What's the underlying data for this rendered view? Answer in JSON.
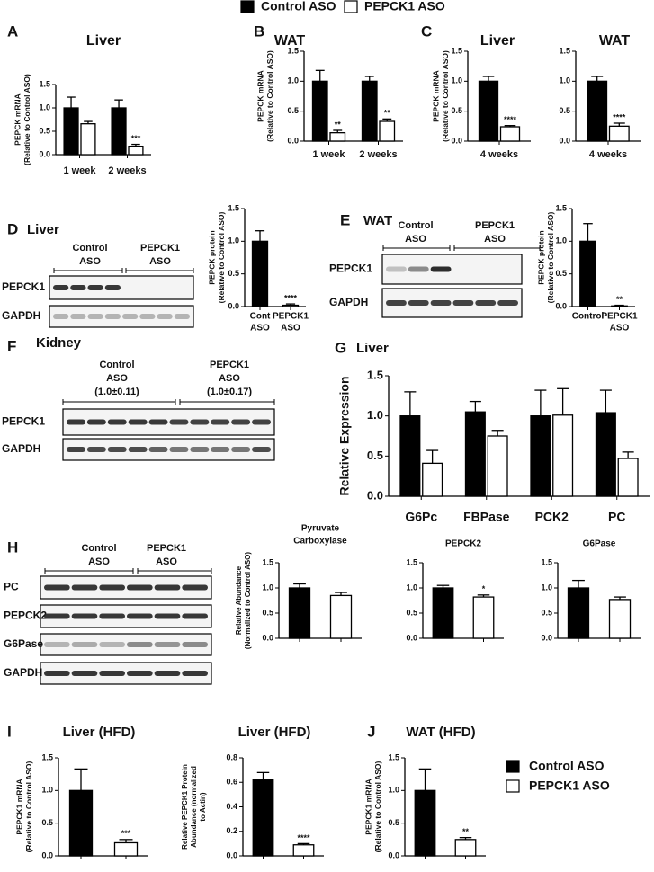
{
  "panel_labels": [
    "A",
    "B",
    "C",
    "D",
    "E",
    "F",
    "G",
    "H",
    "I",
    "J"
  ],
  "legend": [
    {
      "name": "Control ASO",
      "color": "#000000"
    },
    {
      "name": "PEPCK1 ASO",
      "color": "#ffffff"
    }
  ],
  "blots": [
    {
      "title": "Liver",
      "groups": [
        [
          "Control",
          "ASO"
        ],
        [
          "PEPCK1",
          "ASO"
        ]
      ],
      "rows": [
        "PEPCK1",
        "GAPDH"
      ]
    },
    {
      "title": "WAT",
      "groups": [
        [
          "Control",
          "ASO"
        ],
        [
          "PEPCK1",
          "ASO"
        ]
      ],
      "rows": [
        "PEPCK1",
        "GAPDH"
      ]
    },
    {
      "title": "Kidney",
      "groups": [
        [
          "Control",
          "ASO",
          "(1.0±0.11)"
        ],
        [
          "PEPCK1",
          "ASO",
          "(1.0±0.17)"
        ]
      ],
      "rows": [
        "PEPCK1",
        "GAPDH"
      ]
    },
    {
      "groups": [
        [
          "Control",
          "ASO"
        ],
        [
          "PEPCK1",
          "ASO"
        ]
      ],
      "rows": [
        "PC",
        "PEPCK2",
        "G6Pase",
        "GAPDH"
      ]
    }
  ],
  "chart_data": [
    {
      "type": "bar",
      "title": [
        "Liver"
      ],
      "ylabel": [
        "PEPCK mRNA",
        "(Relative to Control ASO)"
      ],
      "categories": [
        [
          "1 week"
        ],
        [
          "2 weeks"
        ]
      ],
      "series": [
        {
          "color": "#000000",
          "values": [
            1.0,
            1.0
          ],
          "errors": [
            0.23,
            0.17
          ],
          "annotations": [
            null,
            null
          ]
        },
        {
          "color": "#ffffff",
          "values": [
            0.66,
            0.18
          ],
          "errors": [
            0.05,
            0.04
          ],
          "annotations": [
            null,
            "***"
          ]
        }
      ],
      "ylim": [
        0,
        1.5
      ],
      "yticks": [
        {
          "value": 0,
          "label": "0.0"
        },
        0.5,
        {
          "value": 1,
          "label": "1.0"
        },
        1.5
      ]
    },
    {
      "type": "bar",
      "title": [
        "WAT"
      ],
      "ylabel": [
        "PEPCK mRNA",
        "(Relative to Control ASO)"
      ],
      "categories": [
        [
          "1 week"
        ],
        [
          "2 weeks"
        ]
      ],
      "series": [
        {
          "color": "#000000",
          "values": [
            1.0,
            1.0
          ],
          "errors": [
            0.18,
            0.08
          ],
          "annotations": [
            null,
            null
          ]
        },
        {
          "color": "#ffffff",
          "values": [
            0.14,
            0.33
          ],
          "errors": [
            0.04,
            0.04
          ],
          "annotations": [
            "**",
            "**"
          ]
        }
      ],
      "ylim": [
        0,
        1.5
      ],
      "yticks": [
        {
          "value": 0,
          "label": "0.0"
        },
        0.5,
        {
          "value": 1,
          "label": "1.0"
        },
        1.5
      ]
    },
    {
      "type": "bar",
      "title": [
        "Liver"
      ],
      "ylabel": [
        "PEPCK mRNA",
        "(Relative to Control ASO)"
      ],
      "categories": [
        [
          "4 weeks"
        ]
      ],
      "series": [
        {
          "color": "#000000",
          "values": [
            1.0
          ],
          "errors": [
            0.08
          ],
          "annotations": [
            null
          ]
        },
        {
          "color": "#ffffff",
          "values": [
            0.24
          ],
          "errors": [
            0.02
          ],
          "annotations": [
            "****"
          ]
        }
      ],
      "ylim": [
        0,
        1.5
      ],
      "yticks": [
        {
          "value": 0,
          "label": "0.0"
        },
        0.5,
        {
          "value": 1,
          "label": "1.0"
        },
        1.5
      ]
    },
    {
      "type": "bar",
      "title": [
        "WAT"
      ],
      "categories": [
        [
          "4 weeks"
        ]
      ],
      "series": [
        {
          "color": "#000000",
          "values": [
            1.0
          ],
          "errors": [
            0.08
          ],
          "annotations": [
            null
          ]
        },
        {
          "color": "#ffffff",
          "values": [
            0.25
          ],
          "errors": [
            0.05
          ],
          "annotations": [
            "****"
          ]
        }
      ],
      "ylim": [
        0,
        1.5
      ],
      "yticks": [
        {
          "value": 0,
          "label": "0.0"
        },
        0.5,
        {
          "value": 1,
          "label": "1.0"
        },
        1.5
      ]
    },
    {
      "type": "bar",
      "ylabel": [
        "PEPCK protein",
        "(Relative to Control ASO)"
      ],
      "categories": [
        [
          "Cont",
          "ASO"
        ],
        [
          "PEPCK1",
          "ASO"
        ]
      ],
      "values": [
        1.0,
        0.02
      ],
      "errors": [
        0.16,
        0.02
      ],
      "colors": [
        "#000000",
        "#ffffff"
      ],
      "annotations": [
        null,
        "****"
      ],
      "ylim": [
        0,
        1.5
      ],
      "yticks": [
        {
          "value": 0,
          "label": "0.0"
        },
        0.5,
        {
          "value": 1,
          "label": "1.0"
        },
        1.5
      ]
    },
    {
      "type": "bar",
      "ylabel": [
        "PEPCK protein",
        "(Relative to Control ASO)"
      ],
      "categories": [
        [
          "Control"
        ],
        [
          "PEPCK1",
          "ASO"
        ]
      ],
      "values": [
        1.0,
        0.01
      ],
      "errors": [
        0.27,
        0.01
      ],
      "colors": [
        "#000000",
        "#ffffff"
      ],
      "annotations": [
        null,
        "**"
      ],
      "ylim": [
        0,
        1.5
      ],
      "yticks": [
        {
          "value": 0,
          "label": "0.0"
        },
        0.5,
        {
          "value": 1,
          "label": "1.0"
        },
        1.5
      ]
    },
    {
      "type": "bar",
      "title": [
        "Liver"
      ],
      "ylabel": [
        "Relative Expression"
      ],
      "categories": [
        [
          "G6Pc"
        ],
        [
          "FBPase"
        ],
        [
          "PCK2"
        ],
        [
          "PC"
        ]
      ],
      "series": [
        {
          "color": "#000000",
          "values": [
            1.0,
            1.05,
            1.0,
            1.04
          ],
          "errors": [
            0.3,
            0.13,
            0.32,
            0.28
          ],
          "annotations": [
            null,
            null,
            null,
            null
          ]
        },
        {
          "color": "#ffffff",
          "values": [
            0.41,
            0.75,
            1.01,
            0.47
          ],
          "errors": [
            0.16,
            0.07,
            0.33,
            0.08
          ],
          "annotations": [
            null,
            null,
            null,
            null
          ]
        }
      ],
      "ylim": [
        0,
        1.5
      ],
      "yticks": [
        {
          "value": 0,
          "label": "0.0"
        },
        0.5,
        {
          "value": 1,
          "label": "1.0"
        },
        1.5
      ]
    },
    {
      "type": "bar",
      "title": [
        "Pyruvate",
        "Carboxylase"
      ],
      "ylabel": [
        "Relative Abundance",
        "(Normalized to Control ASO)"
      ],
      "categories": [
        null,
        null
      ],
      "values": [
        1.0,
        0.85
      ],
      "errors": [
        0.08,
        0.06
      ],
      "colors": [
        "#000000",
        "#ffffff"
      ],
      "annotations": [
        null,
        null
      ],
      "ylim": [
        0,
        1.5
      ],
      "yticks": [
        {
          "value": 0,
          "label": "0.0"
        },
        0.5,
        {
          "value": 1,
          "label": "1.0"
        },
        1.5
      ]
    },
    {
      "type": "bar",
      "title": [
        "PEPCK2"
      ],
      "categories": [
        null,
        null
      ],
      "values": [
        1.0,
        0.82
      ],
      "errors": [
        0.05,
        0.04
      ],
      "colors": [
        "#000000",
        "#ffffff"
      ],
      "annotations": [
        null,
        "*"
      ],
      "ylim": [
        0,
        1.5
      ],
      "yticks": [
        {
          "value": 0,
          "label": "0.0"
        },
        0.5,
        {
          "value": 1,
          "label": "1.0"
        },
        1.5
      ]
    },
    {
      "type": "bar",
      "title": [
        "G6Pase"
      ],
      "categories": [
        null,
        null
      ],
      "values": [
        1.0,
        0.77
      ],
      "errors": [
        0.15,
        0.05
      ],
      "colors": [
        "#000000",
        "#ffffff"
      ],
      "annotations": [
        null,
        null
      ],
      "ylim": [
        0,
        1.5
      ],
      "yticks": [
        {
          "value": 0,
          "label": "0.0"
        },
        0.5,
        {
          "value": 1,
          "label": "1.0"
        },
        1.5
      ]
    },
    {
      "type": "bar",
      "title": [
        "Liver (HFD)"
      ],
      "ylabel": [
        "PEPCK1 mRNA",
        "(Relative to Control ASO)"
      ],
      "categories": [
        null,
        null
      ],
      "values": [
        1.0,
        0.2
      ],
      "errors": [
        0.33,
        0.05
      ],
      "colors": [
        "#000000",
        "#ffffff"
      ],
      "annotations": [
        null,
        "***"
      ],
      "ylim": [
        0,
        1.5
      ],
      "yticks": [
        {
          "value": 0,
          "label": "0.0"
        },
        0.5,
        {
          "value": 1,
          "label": "1.0"
        },
        1.5
      ]
    },
    {
      "type": "bar",
      "title": [
        "Liver (HFD)"
      ],
      "ylabel": [
        "Relative PEPCK1 Protein",
        "Abundance (normalized",
        "to Actin)"
      ],
      "categories": [
        null,
        null
      ],
      "values": [
        0.62,
        0.09
      ],
      "errors": [
        0.06,
        0.01
      ],
      "colors": [
        "#000000",
        "#ffffff"
      ],
      "annotations": [
        null,
        "****"
      ],
      "ylim": [
        0,
        0.8
      ],
      "yticks": [
        {
          "value": 0,
          "label": "0.0"
        },
        0.2,
        0.4,
        0.6,
        0.8
      ]
    },
    {
      "type": "bar",
      "title": [
        "WAT (HFD)"
      ],
      "ylabel": [
        "PEPCK1 mRNA",
        "(Relative to Control ASO)"
      ],
      "categories": [
        null,
        null
      ],
      "values": [
        1.0,
        0.25
      ],
      "errors": [
        0.33,
        0.03
      ],
      "colors": [
        "#000000",
        "#ffffff"
      ],
      "annotations": [
        null,
        "**"
      ],
      "ylim": [
        0,
        1.5
      ],
      "yticks": [
        {
          "value": 0,
          "label": "0.0"
        },
        0.5,
        {
          "value": 1,
          "label": "1.0"
        },
        1.5
      ]
    }
  ]
}
